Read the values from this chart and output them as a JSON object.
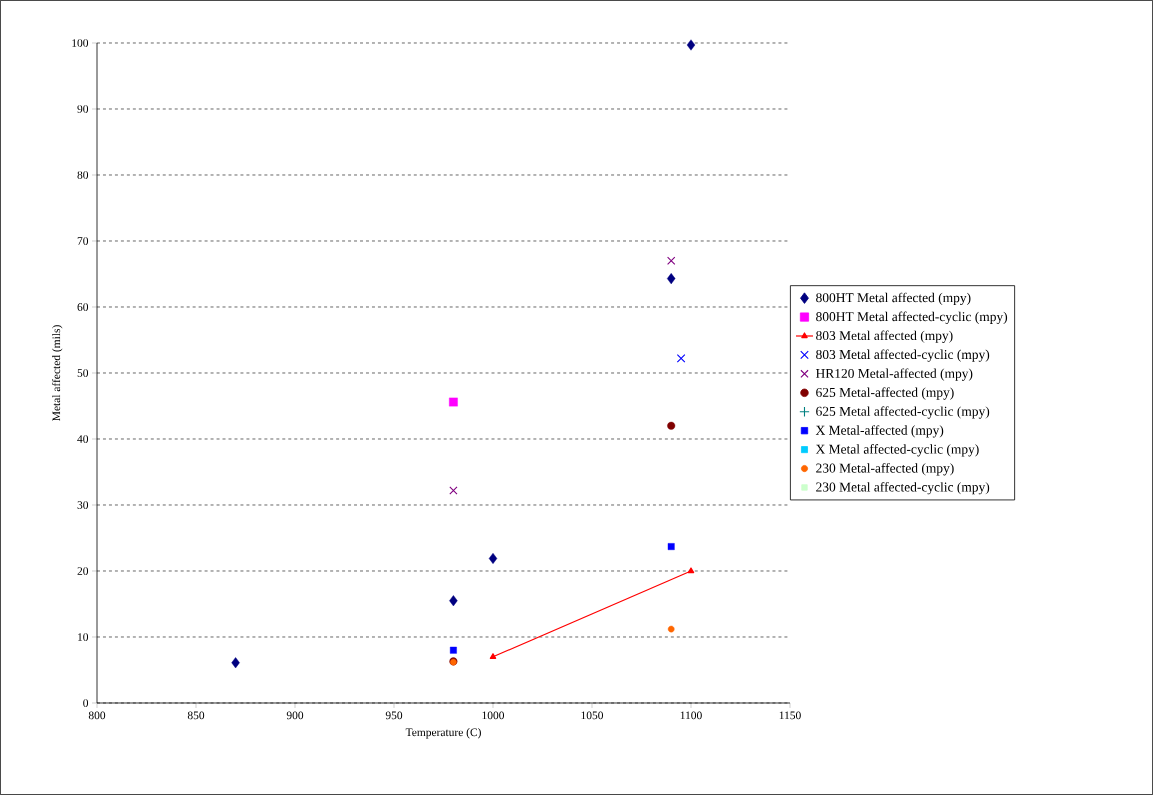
{
  "chart_data": {
    "type": "scatter",
    "xlabel": "Temperature (C)",
    "ylabel": "Metal affected (mils)",
    "xlim": [
      800,
      1150
    ],
    "xticks": [
      800,
      850,
      900,
      950,
      1000,
      1050,
      1100,
      1150
    ],
    "ylim": [
      0,
      100
    ],
    "yticks": [
      0,
      10,
      20,
      30,
      40,
      50,
      60,
      70,
      80,
      90,
      100
    ],
    "grid": "y",
    "legend": "right",
    "series": [
      {
        "name": "800HT Metal affected (mpy)",
        "color": "#000080",
        "marker": "diamond",
        "x": [
          870,
          980,
          1000,
          1090,
          1100
        ],
        "values": [
          6.1,
          15.5,
          21.9,
          64.3,
          99.7
        ]
      },
      {
        "name": "800HT Metal affected-cyclic (mpy)",
        "color": "#ff00ff",
        "marker": "square",
        "x": [
          980
        ],
        "values": [
          45.6
        ]
      },
      {
        "name": "803 Metal affected (mpy)",
        "type": "line",
        "color": "#ff0000",
        "marker": "triangle",
        "x": [
          1000,
          1100
        ],
        "values": [
          7,
          20
        ]
      },
      {
        "name": "803 Metal affected-cyclic (mpy)",
        "color": "#0000ff",
        "marker": "cross",
        "x": [
          1095
        ],
        "values": [
          52.2
        ]
      },
      {
        "name": "HR120 Metal-affected (mpy)",
        "color": "#800080",
        "marker": "cross",
        "x": [
          980,
          1090
        ],
        "values": [
          32.2,
          67
        ]
      },
      {
        "name": "625 Metal-affected (mpy)",
        "color": "#800000",
        "marker": "circle",
        "x": [
          980,
          1090
        ],
        "values": [
          6.3,
          42
        ]
      },
      {
        "name": "625 Metal affected-cyclic (mpy)",
        "color": "#008080",
        "marker": "plus"
      },
      {
        "name": "X Metal-affected (mpy)",
        "color": "#0000ff",
        "marker": "square",
        "x": [
          980,
          1090
        ],
        "values": [
          8,
          23.7
        ]
      },
      {
        "name": "X Metal affected-cyclic (mpy)",
        "color": "#00ccff",
        "marker": "square"
      },
      {
        "name": "230 Metal-affected (mpy)",
        "color": "#ff6600",
        "marker": "circle",
        "x": [
          980,
          1090
        ],
        "values": [
          6.2,
          11.2
        ]
      },
      {
        "name": "230 Metal affected-cyclic (mpy)",
        "color": "#ccffcc",
        "marker": "square"
      }
    ]
  }
}
